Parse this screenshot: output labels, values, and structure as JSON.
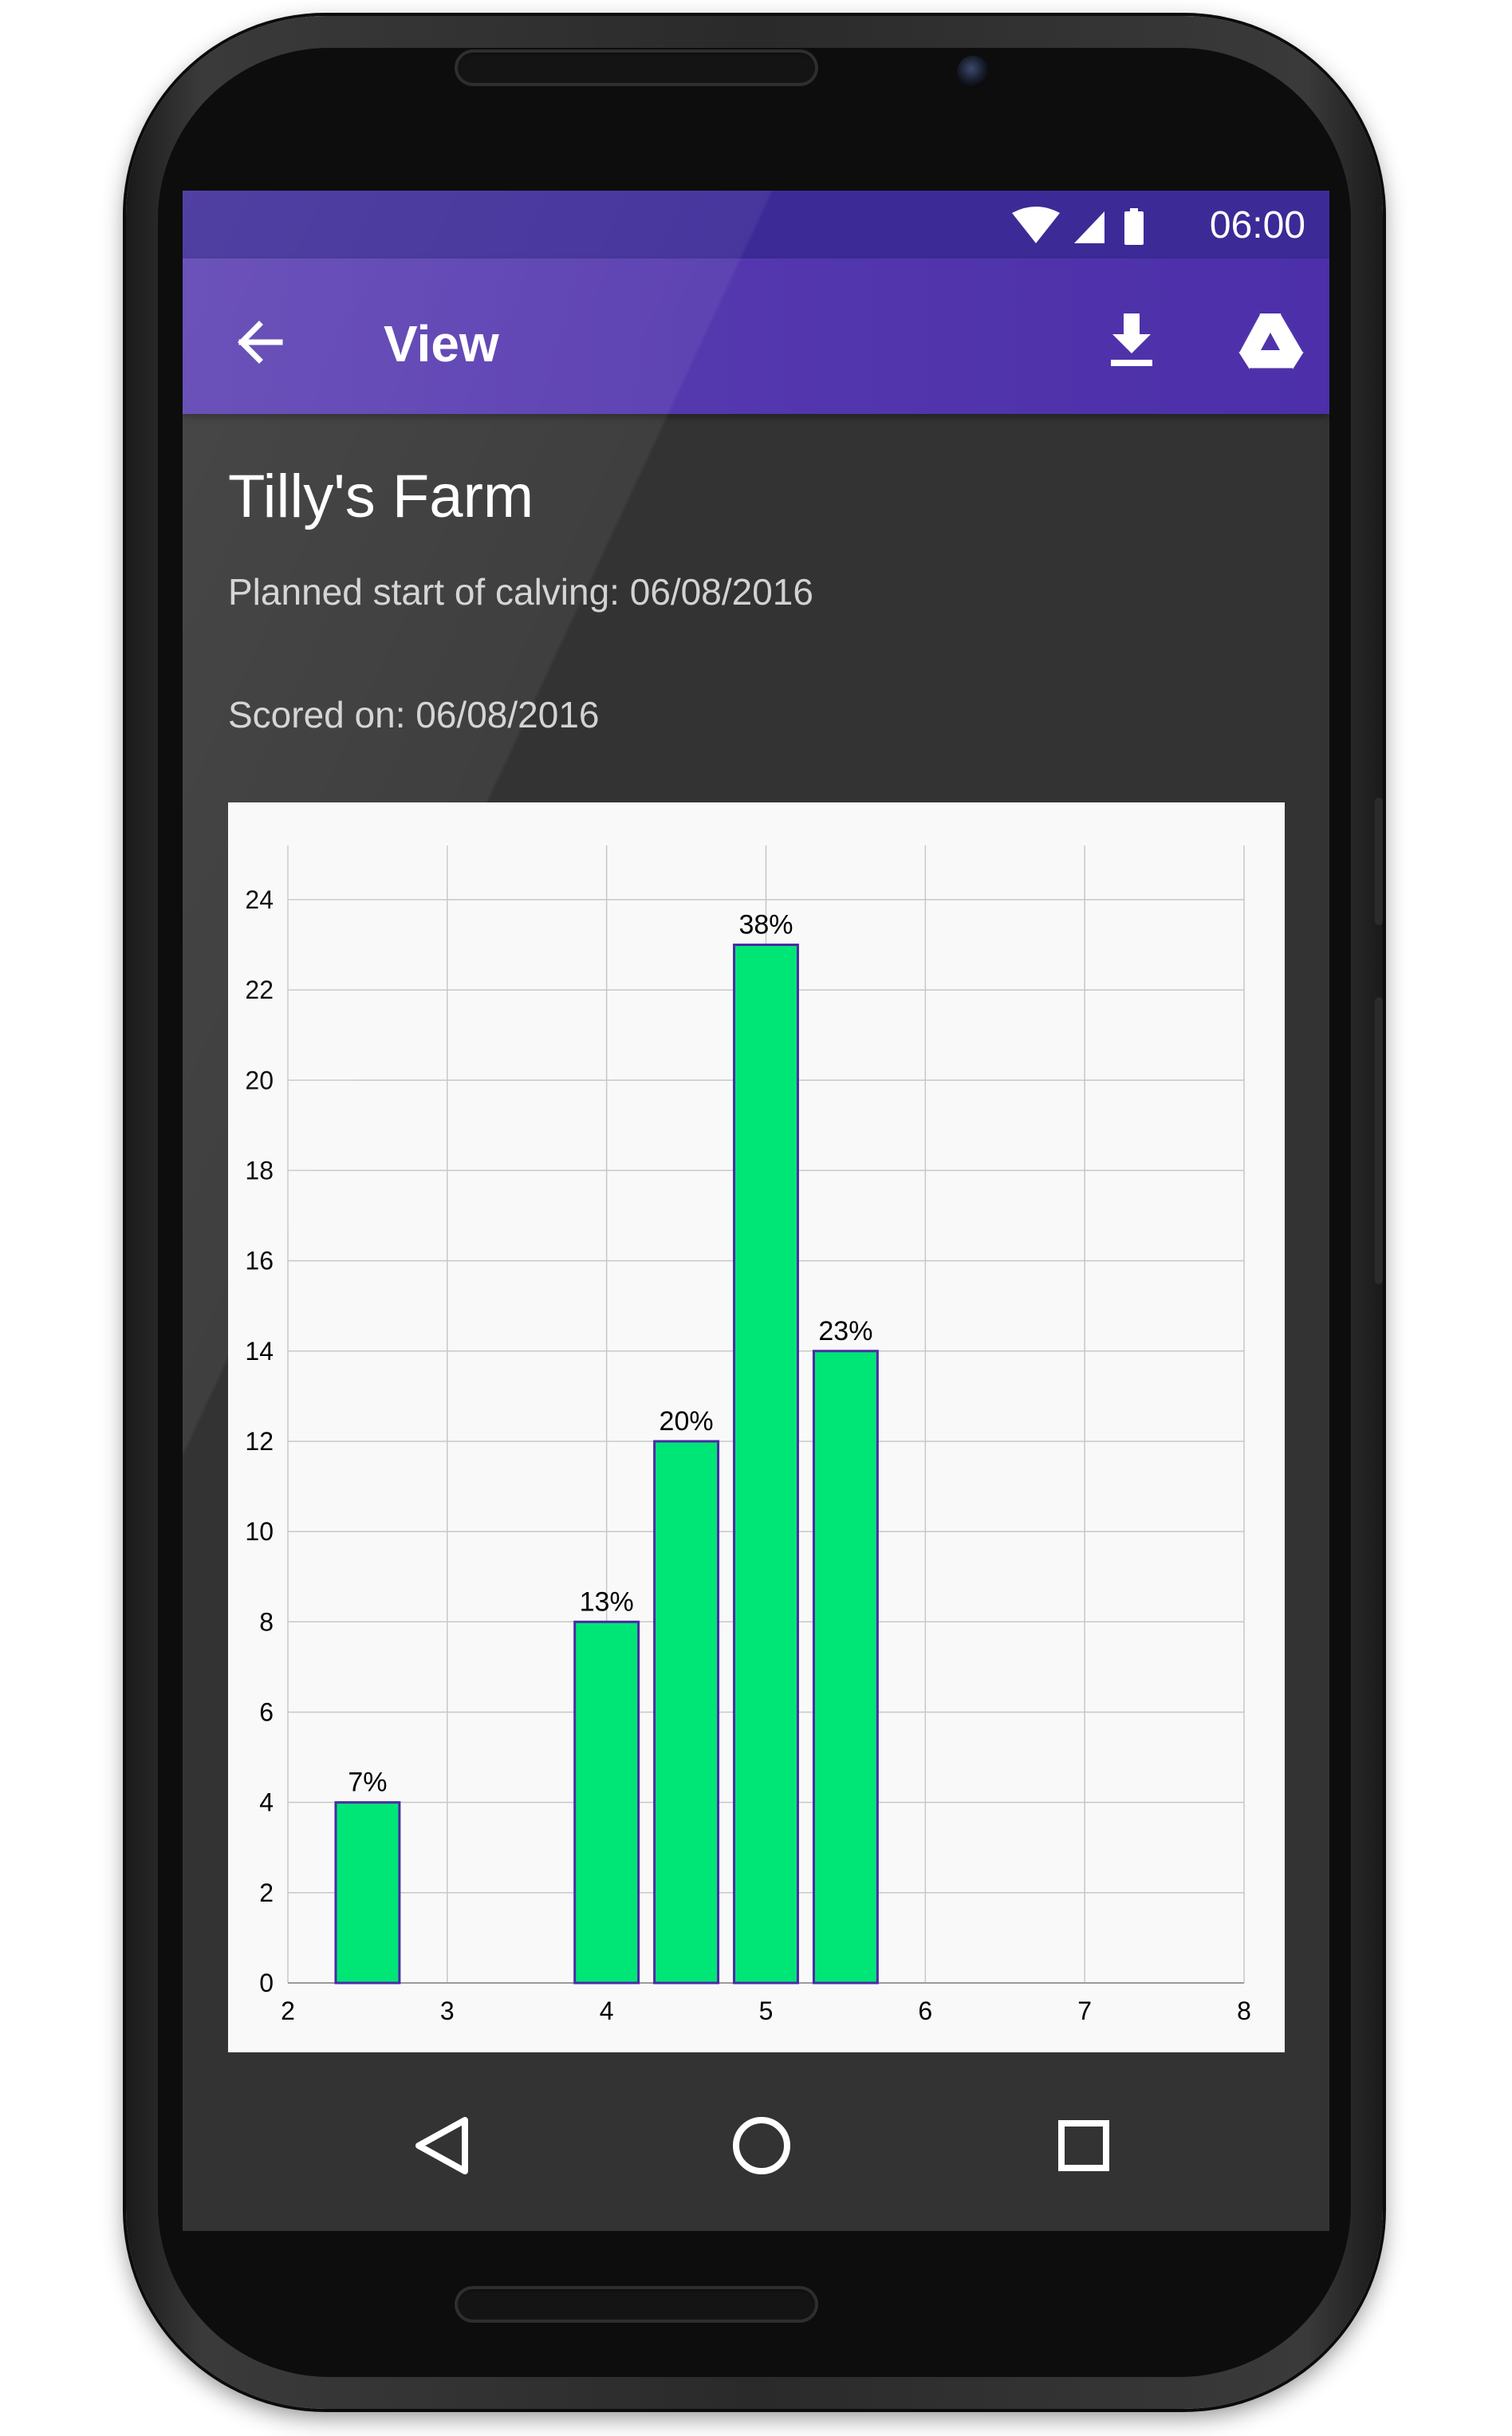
{
  "status_bar": {
    "time": "06:00",
    "icons": [
      "wifi-icon",
      "signal-icon",
      "battery-icon"
    ]
  },
  "app_bar": {
    "title": "View",
    "actions": [
      "back-arrow-icon",
      "download-icon",
      "google-drive-icon"
    ]
  },
  "content": {
    "farm_name": "Tilly's Farm",
    "planned_start": "Planned start of calving: 06/08/2016",
    "scored_on": "Scored on: 06/08/2016"
  },
  "chart_data": {
    "type": "bar",
    "x_ticks": [
      "2",
      "3",
      "4",
      "5",
      "6",
      "7",
      "8"
    ],
    "y_ticks": [
      "0",
      "2",
      "4",
      "6",
      "8",
      "10",
      "12",
      "14",
      "16",
      "18",
      "20",
      "22",
      "24"
    ],
    "xlim": [
      2,
      8
    ],
    "ylim": [
      0,
      25.2
    ],
    "bar_width": 0.4,
    "bars": [
      {
        "x": 2.5,
        "value": 4,
        "label": "7%"
      },
      {
        "x": 4.0,
        "value": 8,
        "label": "13%"
      },
      {
        "x": 4.5,
        "value": 12,
        "label": "20%"
      },
      {
        "x": 5.0,
        "value": 23,
        "label": "38%"
      },
      {
        "x": 5.5,
        "value": 14,
        "label": "23%"
      }
    ],
    "grid": true,
    "colors": {
      "bar_fill": "#00e676",
      "bar_stroke": "#4b2aa6",
      "grid": "#c8c8c8",
      "text": "#000000"
    }
  },
  "nav_bar": {
    "buttons": [
      "back-triangle-icon",
      "home-circle-icon",
      "recents-square-icon"
    ]
  },
  "colors": {
    "status_bar": "#3c2a97",
    "app_bar": "#5b3fb2",
    "screen_bg": "#333333"
  }
}
